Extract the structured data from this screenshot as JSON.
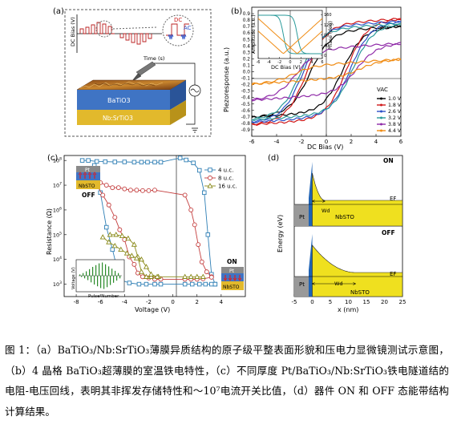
{
  "panels": {
    "a": {
      "label": "(a)",
      "ylabel": "DC Bias (V)",
      "xlabel": "Time (s)",
      "dc_label": "DC",
      "ac_label": "AC",
      "layer_top": "BaTiO3",
      "layer_bottom": "Nb:SrTiO3"
    },
    "b": {
      "label": "(b)",
      "xlabel": "DC Bias (V)",
      "ylabel": "Piezoresponse (a.u.)",
      "inset_xlabel": "DC Bias (V)",
      "inset_ylabel_left": "Amplitude (a.u.)",
      "inset_ylabel_right": "Phase (deg)",
      "vac_label": "VAC"
    },
    "c": {
      "label": "(c)",
      "xlabel": "Voltage (V)",
      "ylabel": "Resistance (Ω)",
      "off_label": "OFF",
      "on_label": "ON",
      "pt_label": "Pt",
      "nbsto_label": "NbSTO",
      "inset_xlabel": "Pulse Number",
      "inset_ylabel": "Voltage (V)"
    },
    "d": {
      "label": "(d)",
      "xlabel": "x (nm)",
      "ylabel": "Energy (eV)",
      "on_label": "ON",
      "off_label": "OFF",
      "ef_label": "EF",
      "wd_label": "Wd",
      "pt_label": "Pt",
      "nbsto_label": "NbSTO"
    }
  },
  "chart_data": [
    {
      "panel": "b",
      "type": "line",
      "xlabel": "DC Bias (V)",
      "ylabel": "Piezoresponse (a.u.)",
      "xlim": [
        -6,
        6
      ],
      "ylim": [
        -1.0,
        1.0
      ],
      "x_ticks": [
        -6,
        -4,
        -2,
        0,
        2,
        4,
        6
      ],
      "y_ticks": [
        -0.9,
        -0.8,
        -0.7,
        -0.6,
        -0.5,
        -0.4,
        -0.3,
        -0.2,
        -0.1,
        0.0,
        0.1,
        0.2,
        0.3,
        0.4,
        0.5,
        0.6,
        0.7,
        0.8,
        0.9
      ],
      "legend_title": "VAC",
      "legend_position": "bottom-right",
      "series": [
        {
          "name": "1.0 V",
          "color": "#000000",
          "amplitude": 0.66,
          "coercive": 1.3
        },
        {
          "name": "1.8 V",
          "color": "#d0191a",
          "amplitude": 0.78,
          "coercive": 1.6
        },
        {
          "name": "2.6 V",
          "color": "#2b4fc7",
          "amplitude": 0.74,
          "coercive": 1.9
        },
        {
          "name": "3.2 V",
          "color": "#2a9a9a",
          "amplitude": 0.7,
          "coercive": 2.1
        },
        {
          "name": "3.8 V",
          "color": "#8f2aa8",
          "amplitude": 0.38,
          "coercive": 2.4
        },
        {
          "name": "4.4 V",
          "color": "#f08c14",
          "amplitude": 0.12,
          "coercive": 2.6
        }
      ]
    },
    {
      "panel": "b-inset",
      "type": "line",
      "xlabel": "DC Bias (V)",
      "ylabel": "Amplitude (a.u.)",
      "y2label": "Phase (deg)",
      "xlim": [
        -6,
        6
      ],
      "x_ticks": [
        -6,
        -4,
        -2,
        0,
        2,
        4,
        6
      ],
      "y2_ticks": [
        0,
        40,
        80,
        120,
        160
      ],
      "series": [
        {
          "name": "amplitude",
          "color": "#f08c14"
        },
        {
          "name": "phase",
          "color": "#2a9a9a"
        }
      ]
    },
    {
      "panel": "c",
      "type": "scatter",
      "xlabel": "Voltage (V)",
      "ylabel": "Resistance (Ω)",
      "scale_y": "log",
      "xlim": [
        -9,
        6
      ],
      "ylim_exp": [
        2.5,
        8.2
      ],
      "x_ticks": [
        -8,
        -6,
        -4,
        -2,
        0,
        2,
        4
      ],
      "y_tick_labels": [
        "10^3",
        "10^4",
        "10^5",
        "10^6",
        "10^7",
        "10^8"
      ],
      "legend_position": "top-right",
      "series": [
        {
          "name": "4 u.c.",
          "color": "#2f7fb5",
          "marker": "square",
          "upper": [
            [
              -7.5,
              8.0
            ],
            [
              -7.0,
              8.0
            ],
            [
              -6.3,
              7.96
            ],
            [
              -5.6,
              7.95
            ],
            [
              -4.8,
              7.94
            ],
            [
              -4.0,
              7.94
            ],
            [
              -3.2,
              7.93
            ],
            [
              -2.6,
              7.93
            ],
            [
              -2.1,
              7.93
            ],
            [
              -1.5,
              7.93
            ],
            [
              -1.0,
              7.93
            ],
            [
              0.6,
              8.1
            ],
            [
              1.1,
              8.02
            ],
            [
              1.7,
              7.9
            ],
            [
              2.2,
              7.6
            ],
            [
              2.6,
              6.7
            ],
            [
              2.9,
              5.0
            ],
            [
              3.2,
              3.4
            ],
            [
              3.5,
              3.0
            ]
          ],
          "lower": [
            [
              -6.5,
              7.8
            ],
            [
              -6.0,
              6.7
            ],
            [
              -5.5,
              5.3
            ],
            [
              -5.0,
              4.4
            ],
            [
              -4.6,
              3.6
            ],
            [
              -4.2,
              3.15
            ],
            [
              -3.6,
              3.05
            ],
            [
              -2.8,
              3.0
            ],
            [
              -2.2,
              3.0
            ],
            [
              -1.5,
              3.0
            ],
            [
              -1.0,
              3.0
            ],
            [
              1.0,
              3.0
            ],
            [
              1.6,
              3.0
            ],
            [
              2.2,
              3.0
            ],
            [
              2.7,
              3.0
            ],
            [
              3.2,
              3.0
            ],
            [
              3.5,
              3.0
            ]
          ]
        },
        {
          "name": "8 u.c.",
          "color": "#c43e3e",
          "marker": "circle",
          "upper": [
            [
              -6.0,
              7.1
            ],
            [
              -5.5,
              7.0
            ],
            [
              -5.0,
              6.9
            ],
            [
              -4.5,
              6.9
            ],
            [
              -4.0,
              6.85
            ],
            [
              -3.5,
              6.8
            ],
            [
              -3.0,
              6.8
            ],
            [
              -2.5,
              6.78
            ],
            [
              -2.0,
              6.78
            ],
            [
              -1.5,
              6.8
            ],
            [
              1.0,
              6.6
            ],
            [
              1.5,
              6.0
            ],
            [
              1.8,
              5.4
            ],
            [
              2.1,
              4.6
            ],
            [
              2.4,
              3.9
            ],
            [
              2.8,
              3.5
            ],
            [
              3.2,
              3.3
            ]
          ],
          "lower": [
            [
              -6.3,
              7.0
            ],
            [
              -5.8,
              6.6
            ],
            [
              -5.3,
              6.2
            ],
            [
              -4.8,
              5.7
            ],
            [
              -4.4,
              5.2
            ],
            [
              -4.0,
              4.8
            ],
            [
              -3.6,
              4.1
            ],
            [
              -3.2,
              3.8
            ],
            [
              -2.9,
              3.45
            ],
            [
              -2.5,
              3.3
            ],
            [
              -2.0,
              3.25
            ],
            [
              -1.5,
              3.2
            ],
            [
              -1.0,
              3.2
            ],
            [
              1.0,
              3.2
            ],
            [
              1.5,
              3.2
            ],
            [
              2.0,
              3.2
            ],
            [
              2.5,
              3.22
            ],
            [
              3.2,
              3.28
            ]
          ]
        },
        {
          "name": "16 u.c.",
          "color": "#8a8a1a",
          "marker": "triangle",
          "upper": [
            [
              -5.2,
              5.0
            ],
            [
              -4.7,
              5.0
            ],
            [
              -4.2,
              4.95
            ],
            [
              -3.7,
              4.85
            ],
            [
              -3.2,
              4.6
            ],
            [
              -2.9,
              4.1
            ],
            [
              -2.6,
              3.5
            ],
            [
              -2.2,
              3.3
            ],
            [
              -1.8,
              3.3
            ],
            [
              -1.2,
              3.3
            ],
            [
              1.0,
              3.3
            ],
            [
              1.5,
              3.3
            ],
            [
              2.0,
              3.3
            ],
            [
              2.5,
              3.3
            ]
          ],
          "lower": [
            [
              -5.8,
              4.9
            ],
            [
              -5.3,
              4.7
            ],
            [
              -4.8,
              4.55
            ],
            [
              -4.3,
              4.4
            ],
            [
              -3.8,
              4.25
            ],
            [
              -3.4,
              4.15
            ],
            [
              -3.0,
              4.05
            ],
            [
              -2.6,
              4.0
            ],
            [
              -2.2,
              3.7
            ],
            [
              -1.8,
              3.4
            ],
            [
              -1.3,
              3.3
            ]
          ]
        }
      ]
    },
    {
      "panel": "c-inset",
      "type": "bar",
      "xlabel": "Pulse Number",
      "ylabel": "Voltage (V)",
      "values": [
        0.3,
        -0.3,
        0.6,
        -0.6,
        1.0,
        -1.0,
        1.5,
        -1.5,
        2.0,
        -2.0,
        2.4,
        -2.4,
        2.8,
        -2.8,
        3.0,
        -3.0,
        2.6,
        -2.6,
        2.1,
        -2.1,
        1.6,
        -1.6,
        1.1,
        -1.1,
        0.6,
        -0.6
      ]
    },
    {
      "panel": "d",
      "type": "area",
      "xlabel": "x (nm)",
      "ylabel": "Energy (eV)",
      "xlim": [
        -5,
        25
      ],
      "x_ticks": [
        -5,
        0,
        5,
        10,
        15,
        20,
        25
      ],
      "series": [
        {
          "name": "ON",
          "barrier_width_nm": 3.5,
          "barrier_height": 1.7
        },
        {
          "name": "OFF",
          "barrier_width_nm": 12,
          "barrier_height": 1.6
        }
      ]
    }
  ],
  "caption": "图 1：（a）BaTiO₃/Nb:SrTiO₃薄膜异质结构的原子级平整表面形貌和压电力显微镜测试示意图，（b）4 晶格 BaTiO₃超薄膜的室温铁电特性，（c）不同厚度 Pt/BaTiO₃/Nb:SrTiO₃铁电隧道结的电阻-电压回线，表明其非挥发存储特性和～10⁷电流开关比值，（d）器件 ON 和 OFF 态能带结构计算结果。"
}
